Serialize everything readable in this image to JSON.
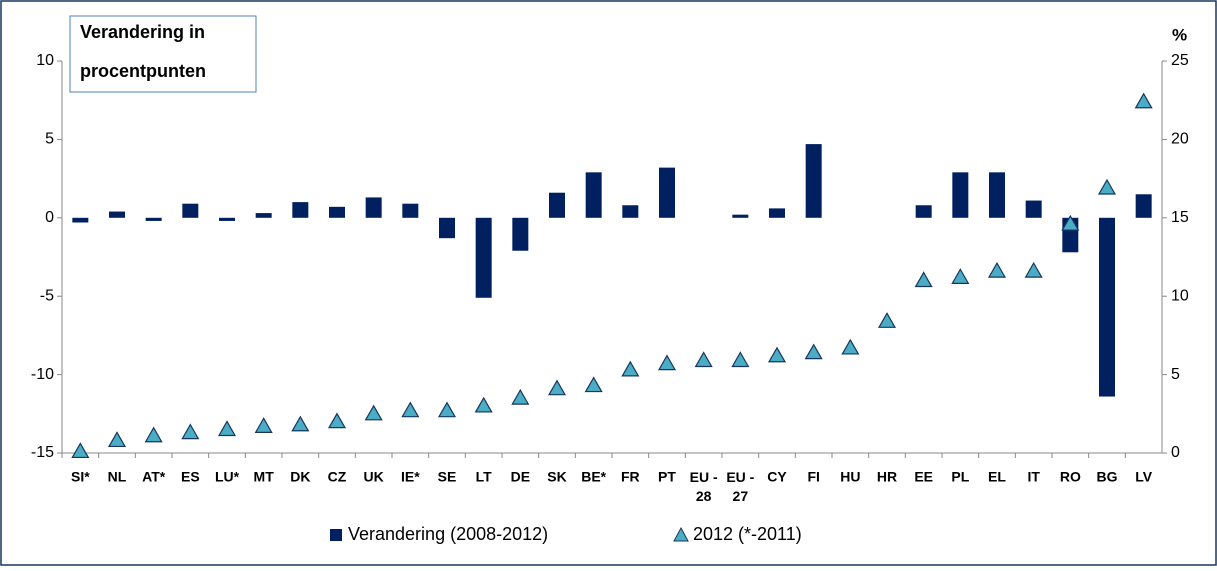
{
  "chart_data": {
    "type": "bar_triangle",
    "annotation": [
      "Verandering in",
      "procentpunten"
    ],
    "y2_label": "%",
    "categories": [
      "SI*",
      "NL",
      "AT*",
      "ES",
      "LU*",
      "MT",
      "DK",
      "CZ",
      "UK",
      "IE*",
      "SE",
      "LT",
      "DE",
      "SK",
      "BE*",
      "FR",
      "PT",
      "EU - 28",
      "EU - 27",
      "CY",
      "FI",
      "HU",
      "HR",
      "EE",
      "PL",
      "EL",
      "IT",
      "RO",
      "BG",
      "LV"
    ],
    "series": [
      {
        "name": "Verandering (2008-2012)",
        "color": "#002060",
        "kind": "bar",
        "values": [
          -0.3,
          0.4,
          -0.2,
          0.9,
          -0.2,
          0.3,
          1.0,
          0.7,
          1.3,
          0.9,
          -1.3,
          -5.1,
          -2.1,
          1.6,
          2.9,
          0.8,
          3.2,
          0,
          0.2,
          0.6,
          4.7,
          0,
          0,
          0.8,
          2.9,
          2.9,
          1.1,
          -2.2,
          -11.4,
          1.5
        ]
      },
      {
        "name": "2012 (*-2011)",
        "color": "#4bacc6",
        "kind": "triangle",
        "axis": "y2",
        "values": [
          0.1,
          0.8,
          1.1,
          1.3,
          1.5,
          1.7,
          1.8,
          2.0,
          2.5,
          2.7,
          2.7,
          3.0,
          3.5,
          4.1,
          4.3,
          5.3,
          5.7,
          5.9,
          5.9,
          6.2,
          6.4,
          6.7,
          8.4,
          11.0,
          11.2,
          11.6,
          11.6,
          14.6,
          16.9,
          22.4
        ]
      }
    ],
    "ylim": [
      -15,
      10
    ],
    "yticks": [
      -15,
      -10,
      -5,
      0,
      5,
      10
    ],
    "y2lim": [
      0,
      25
    ],
    "y2ticks": [
      0,
      5,
      10,
      15,
      20,
      25
    ]
  }
}
